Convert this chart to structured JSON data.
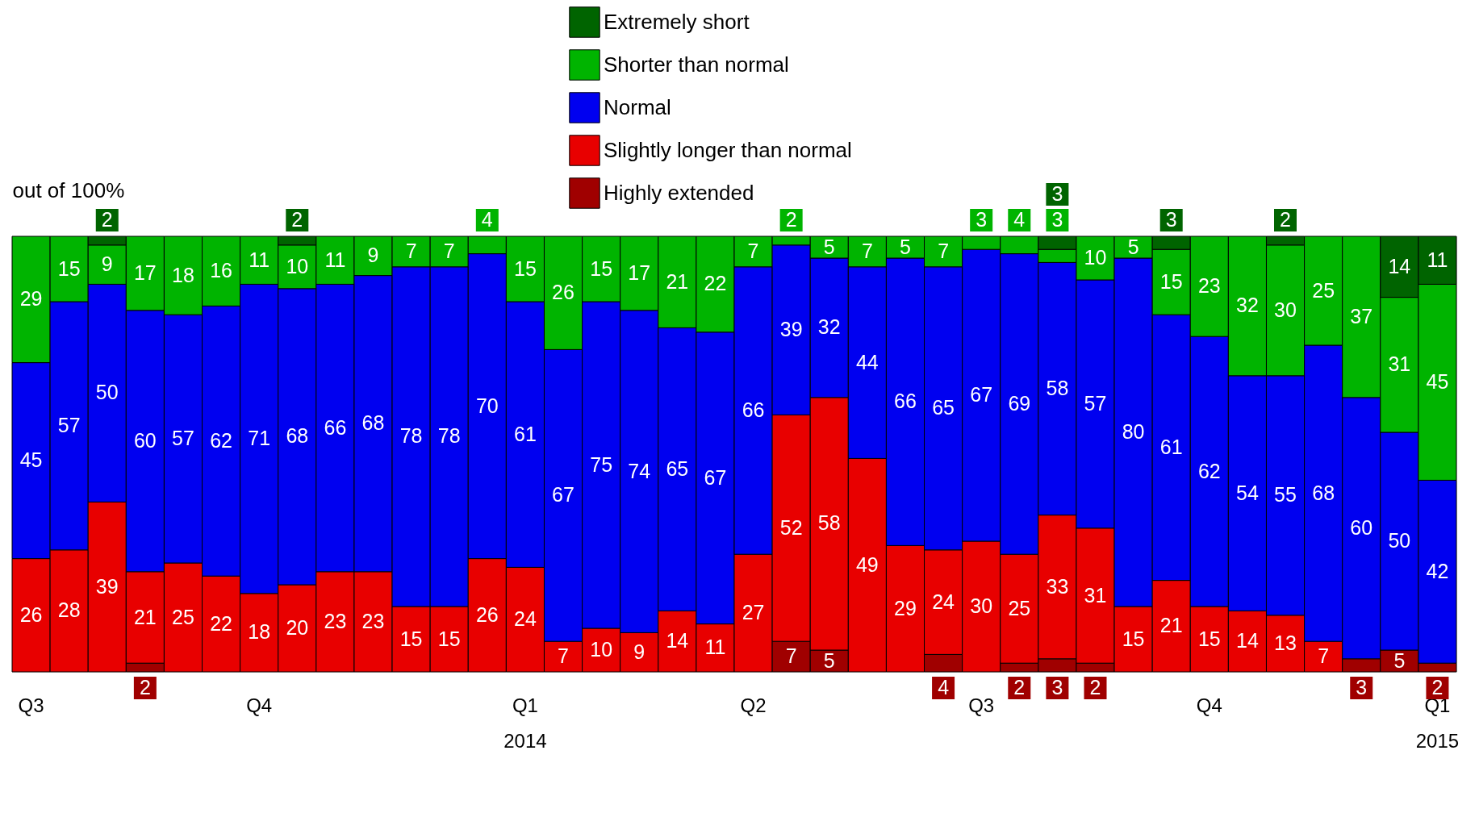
{
  "chart_data": {
    "type": "bar",
    "stacked": true,
    "ylabel": "out of 100%",
    "data_labels": true,
    "legend": "top",
    "categories": [
      "Q3",
      null,
      null,
      null,
      null,
      null,
      "Q4",
      null,
      null,
      null,
      null,
      null,
      null,
      "Q1\n2014",
      null,
      null,
      null,
      null,
      null,
      "Q2",
      null,
      null,
      null,
      null,
      null,
      "Q3",
      null,
      null,
      null,
      null,
      null,
      "Q4",
      null,
      null,
      null,
      null,
      null,
      "Q1\n2015"
    ],
    "series": [
      {
        "name": "Highly extended",
        "color": "#a00000",
        "values": [
          null,
          null,
          null,
          2,
          null,
          null,
          null,
          null,
          null,
          null,
          null,
          null,
          null,
          null,
          null,
          null,
          null,
          null,
          null,
          null,
          7,
          5,
          null,
          null,
          4,
          null,
          2,
          3,
          2,
          null,
          null,
          null,
          null,
          null,
          null,
          3,
          5,
          2
        ]
      },
      {
        "name": "Slightly longer than normal",
        "color": "#e80000",
        "values": [
          26,
          28,
          39,
          21,
          25,
          22,
          18,
          20,
          23,
          23,
          15,
          15,
          26,
          24,
          7,
          10,
          9,
          14,
          11,
          27,
          52,
          58,
          49,
          29,
          24,
          30,
          25,
          33,
          31,
          15,
          21,
          15,
          14,
          13,
          7,
          null,
          null,
          null
        ]
      },
      {
        "name": "Normal",
        "color": "#0000f0",
        "values": [
          45,
          57,
          50,
          60,
          57,
          62,
          71,
          68,
          66,
          68,
          78,
          78,
          70,
          61,
          67,
          75,
          74,
          65,
          67,
          66,
          39,
          32,
          44,
          66,
          65,
          67,
          69,
          58,
          57,
          80,
          61,
          62,
          54,
          55,
          68,
          60,
          50,
          42
        ]
      },
      {
        "name": "Shorter than normal",
        "color": "#00b400",
        "values": [
          29,
          15,
          9,
          17,
          18,
          16,
          11,
          10,
          11,
          9,
          7,
          7,
          4,
          15,
          26,
          15,
          17,
          21,
          22,
          7,
          2,
          5,
          7,
          5,
          7,
          3,
          4,
          3,
          10,
          5,
          15,
          23,
          32,
          30,
          25,
          37,
          31,
          45
        ]
      },
      {
        "name": "Extremely short",
        "color": "#006400",
        "values": [
          null,
          null,
          2,
          null,
          null,
          null,
          null,
          2,
          null,
          null,
          null,
          null,
          null,
          null,
          null,
          null,
          null,
          null,
          null,
          null,
          null,
          null,
          null,
          null,
          null,
          null,
          null,
          3,
          null,
          null,
          3,
          null,
          null,
          2,
          null,
          null,
          14,
          11
        ]
      }
    ]
  }
}
